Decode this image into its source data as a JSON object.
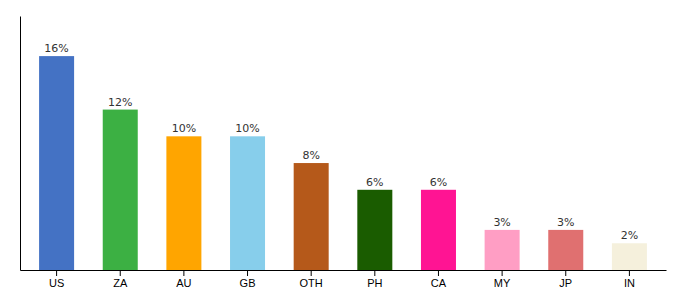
{
  "chart_data": {
    "type": "bar",
    "categories": [
      "US",
      "ZA",
      "AU",
      "GB",
      "OTH",
      "PH",
      "CA",
      "MY",
      "JP",
      "IN"
    ],
    "values": [
      16,
      12,
      10,
      10,
      8,
      6,
      6,
      3,
      3,
      2
    ],
    "colors": [
      "#4472c4",
      "#3cb043",
      "#ffa500",
      "#87ceeb",
      "#b5591a",
      "#1a5c00",
      "#ff1493",
      "#ff9ec4",
      "#e07070",
      "#f5f0dc"
    ],
    "data_labels": true,
    "value_labels": [
      "16%",
      "12%",
      "10%",
      "10%",
      "8%",
      "6%",
      "6%",
      "3%",
      "3%",
      "2%"
    ],
    "ylim": [
      0,
      19
    ],
    "grid": false,
    "tick_labels": "x"
  }
}
